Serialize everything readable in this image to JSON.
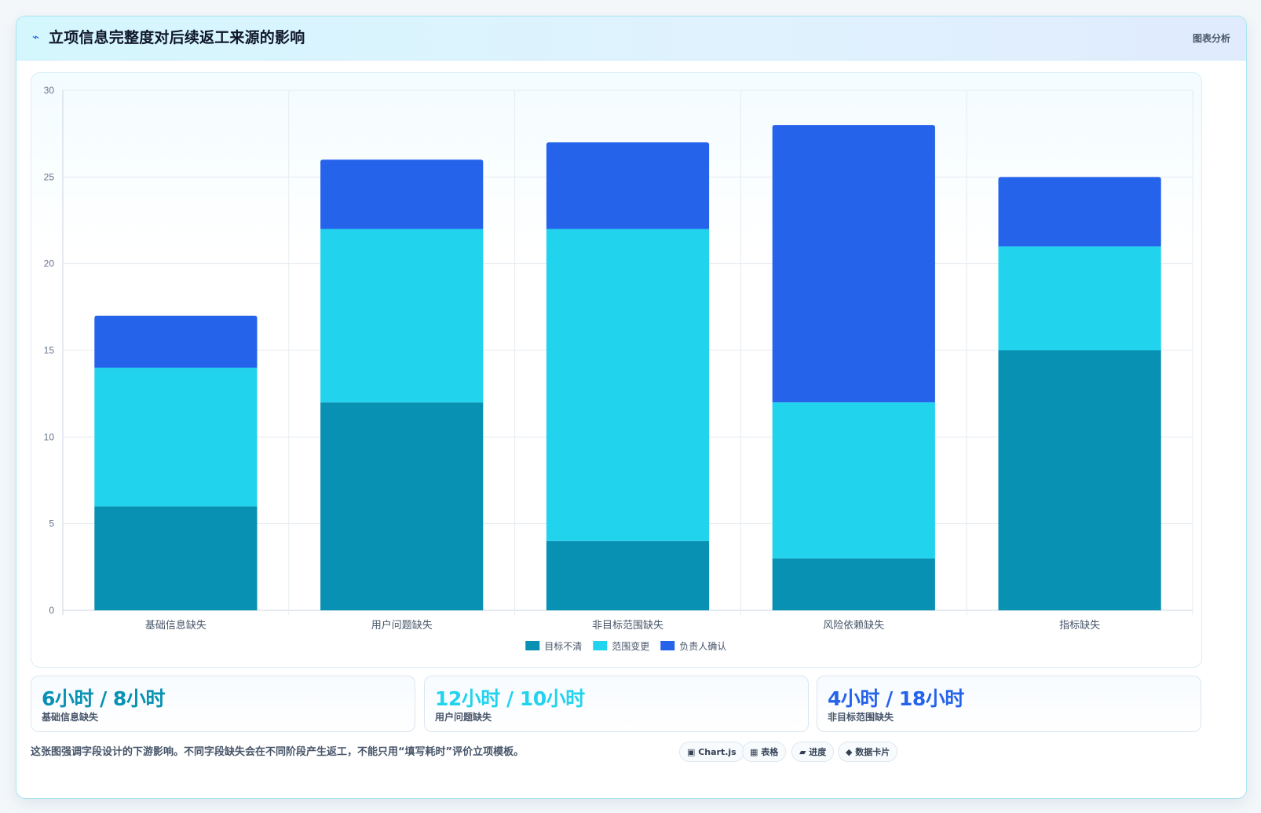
{
  "header": {
    "icon": "⌁",
    "title": "立项信息完整度对后续返工来源的影响",
    "tag": "图表分析"
  },
  "chart_data": {
    "type": "bar",
    "stacked": true,
    "categories": [
      "基础信息缺失",
      "用户问题缺失",
      "非目标范围缺失",
      "风险依赖缺失",
      "指标缺失"
    ],
    "series": [
      {
        "name": "目标不清",
        "color": "#0891b2",
        "values": [
          6,
          12,
          4,
          3,
          15
        ]
      },
      {
        "name": "范围变更",
        "color": "#22d3ee",
        "values": [
          8,
          10,
          18,
          9,
          6
        ]
      },
      {
        "name": "负责人确认",
        "color": "#2563eb",
        "values": [
          3,
          4,
          5,
          16,
          4
        ]
      }
    ],
    "ylim": [
      0,
      30
    ],
    "yticks": [
      0,
      5,
      10,
      15,
      20,
      25,
      30
    ],
    "grid": true,
    "legend_position": "bottom"
  },
  "stats": [
    {
      "value": "6小时 / 8小时",
      "label": "基础信息缺失",
      "color": "#0891b2"
    },
    {
      "value": "12小时 / 10小时",
      "label": "用户问题缺失",
      "color": "#22d3ee"
    },
    {
      "value": "4小时 / 18小时",
      "label": "非目标范围缺失",
      "color": "#2563eb"
    }
  ],
  "footer": {
    "note": "这张图强调字段设计的下游影响。不同字段缺失会在不同阶段产生返工，不能只用“填写耗时”评价立项模板。",
    "tags": [
      "▣ Chart.js",
      "▦ 表格",
      "▰ 进度",
      "◆ 数据卡片"
    ]
  }
}
